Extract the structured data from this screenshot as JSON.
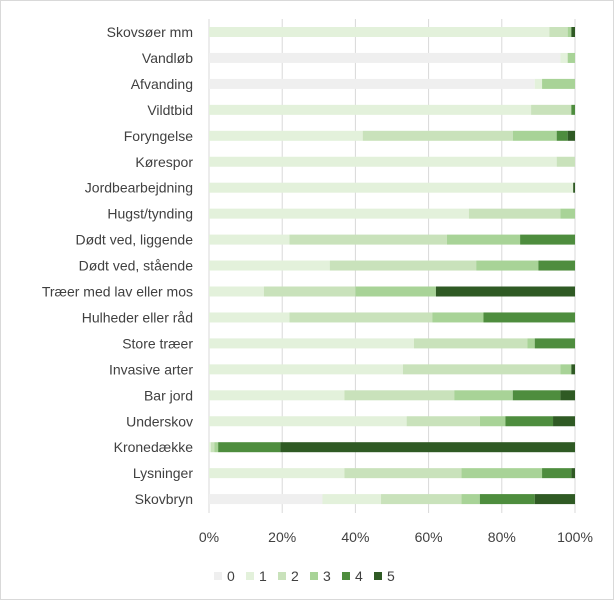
{
  "chart_data": {
    "type": "bar",
    "orientation": "horizontal",
    "stacked": "percent",
    "title": "",
    "xlabel": "",
    "ylabel": "",
    "xlim": [
      0,
      100
    ],
    "x_ticks": [
      "0%",
      "20%",
      "40%",
      "60%",
      "80%",
      "100%"
    ],
    "grid": "vertical",
    "legend_position": "bottom",
    "categories": [
      "Skovsøer mm",
      "Vandløb",
      "Afvanding",
      "Vildtbid",
      "Foryngelse",
      "Kørespor",
      "Jordbearbejdning",
      "Hugst/tynding",
      "Dødt ved, liggende",
      "Dødt ved, stående",
      "Træer med lav eller mos",
      "Hulheder eller råd",
      "Store træer",
      "Invasive arter",
      "Bar jord",
      "Underskov",
      "Kronedække",
      "Lysninger",
      "Skovbryn"
    ],
    "series": [
      {
        "name": "0",
        "color": "#efefef",
        "values": [
          0,
          96,
          89,
          0,
          0,
          0,
          0,
          0,
          0,
          0,
          0,
          0,
          0,
          0,
          0,
          0,
          0,
          0,
          31
        ]
      },
      {
        "name": "1",
        "color": "#e3f1db",
        "values": [
          93,
          2,
          2,
          88,
          42,
          95,
          99.5,
          71,
          22,
          33,
          15,
          22,
          56,
          53,
          37,
          54,
          0.5,
          37,
          16
        ]
      },
      {
        "name": "2",
        "color": "#c9e2bb",
        "values": [
          5,
          0,
          0,
          11,
          41,
          5,
          0,
          25,
          43,
          40,
          25,
          39,
          31,
          43,
          30,
          20,
          1,
          32,
          22
        ]
      },
      {
        "name": "3",
        "color": "#a8d397",
        "values": [
          1,
          2,
          9,
          0,
          12,
          0,
          0,
          4,
          20,
          17,
          22,
          14,
          2,
          3,
          16,
          7,
          1,
          22,
          5
        ]
      },
      {
        "name": "4",
        "color": "#4e8d3e",
        "values": [
          0,
          0,
          0,
          1,
          3,
          0,
          0,
          0,
          15,
          10,
          0,
          25,
          11,
          0,
          13,
          13,
          17,
          8,
          15
        ]
      },
      {
        "name": "5",
        "color": "#2f5a24",
        "values": [
          1,
          0,
          0,
          0,
          2,
          0,
          0.5,
          0,
          0,
          0,
          38,
          0,
          0,
          1,
          4,
          6,
          80.5,
          1,
          11
        ]
      }
    ]
  }
}
